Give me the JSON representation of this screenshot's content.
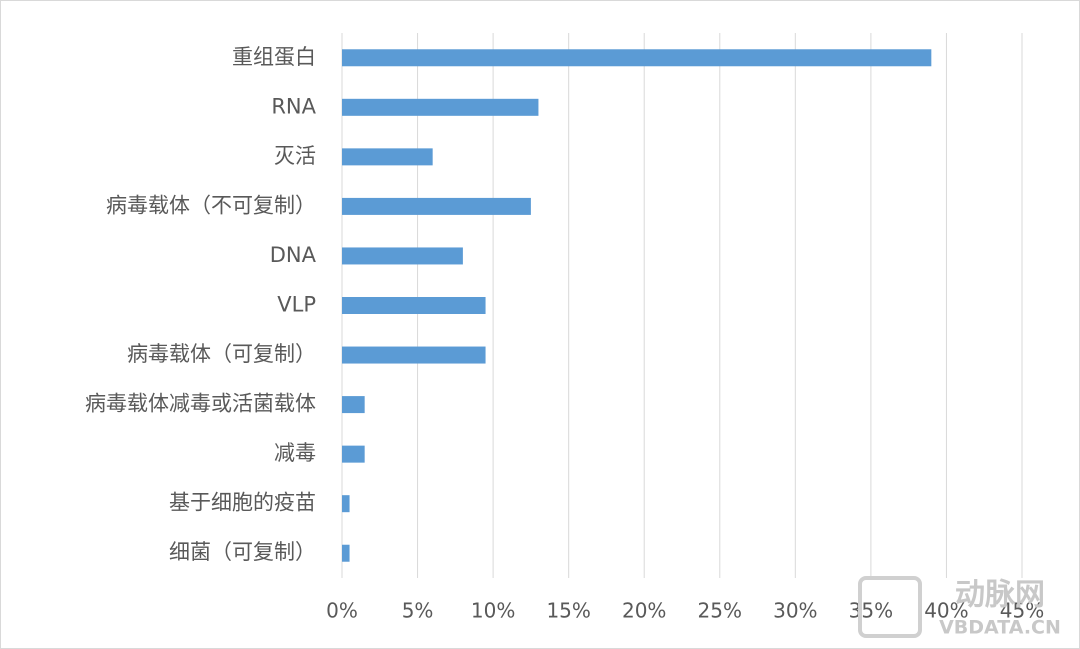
{
  "chart_data": {
    "type": "barh",
    "categories": [
      "重组蛋白",
      "RNA",
      "灭活",
      "病毒载体（不可复制）",
      "DNA",
      "VLP",
      "病毒载体（可复制）",
      "病毒载体减毒或活菌载体",
      "减毒",
      "基于细胞的疫苗",
      "细菌（可复制）"
    ],
    "values": [
      39,
      13,
      6,
      12.5,
      8,
      9.5,
      9.5,
      1.5,
      1.5,
      0.5,
      0.5
    ],
    "color": "#5b9bd5",
    "xlim": [
      0,
      45
    ],
    "xticks": [
      {
        "value": 0,
        "label": "0%"
      },
      {
        "value": 5,
        "label": "5%"
      },
      {
        "value": 10,
        "label": "10%"
      },
      {
        "value": 15,
        "label": "15%"
      },
      {
        "value": 20,
        "label": "20%"
      },
      {
        "value": 25,
        "label": "25%"
      },
      {
        "value": 30,
        "label": "30%"
      },
      {
        "value": 35,
        "label": "35%"
      },
      {
        "value": 40,
        "label": "40%"
      },
      {
        "value": 45,
        "label": "45%"
      }
    ],
    "grid": true,
    "watermark": {
      "brand": "动脉网",
      "site": "VBDATA.CN"
    }
  }
}
